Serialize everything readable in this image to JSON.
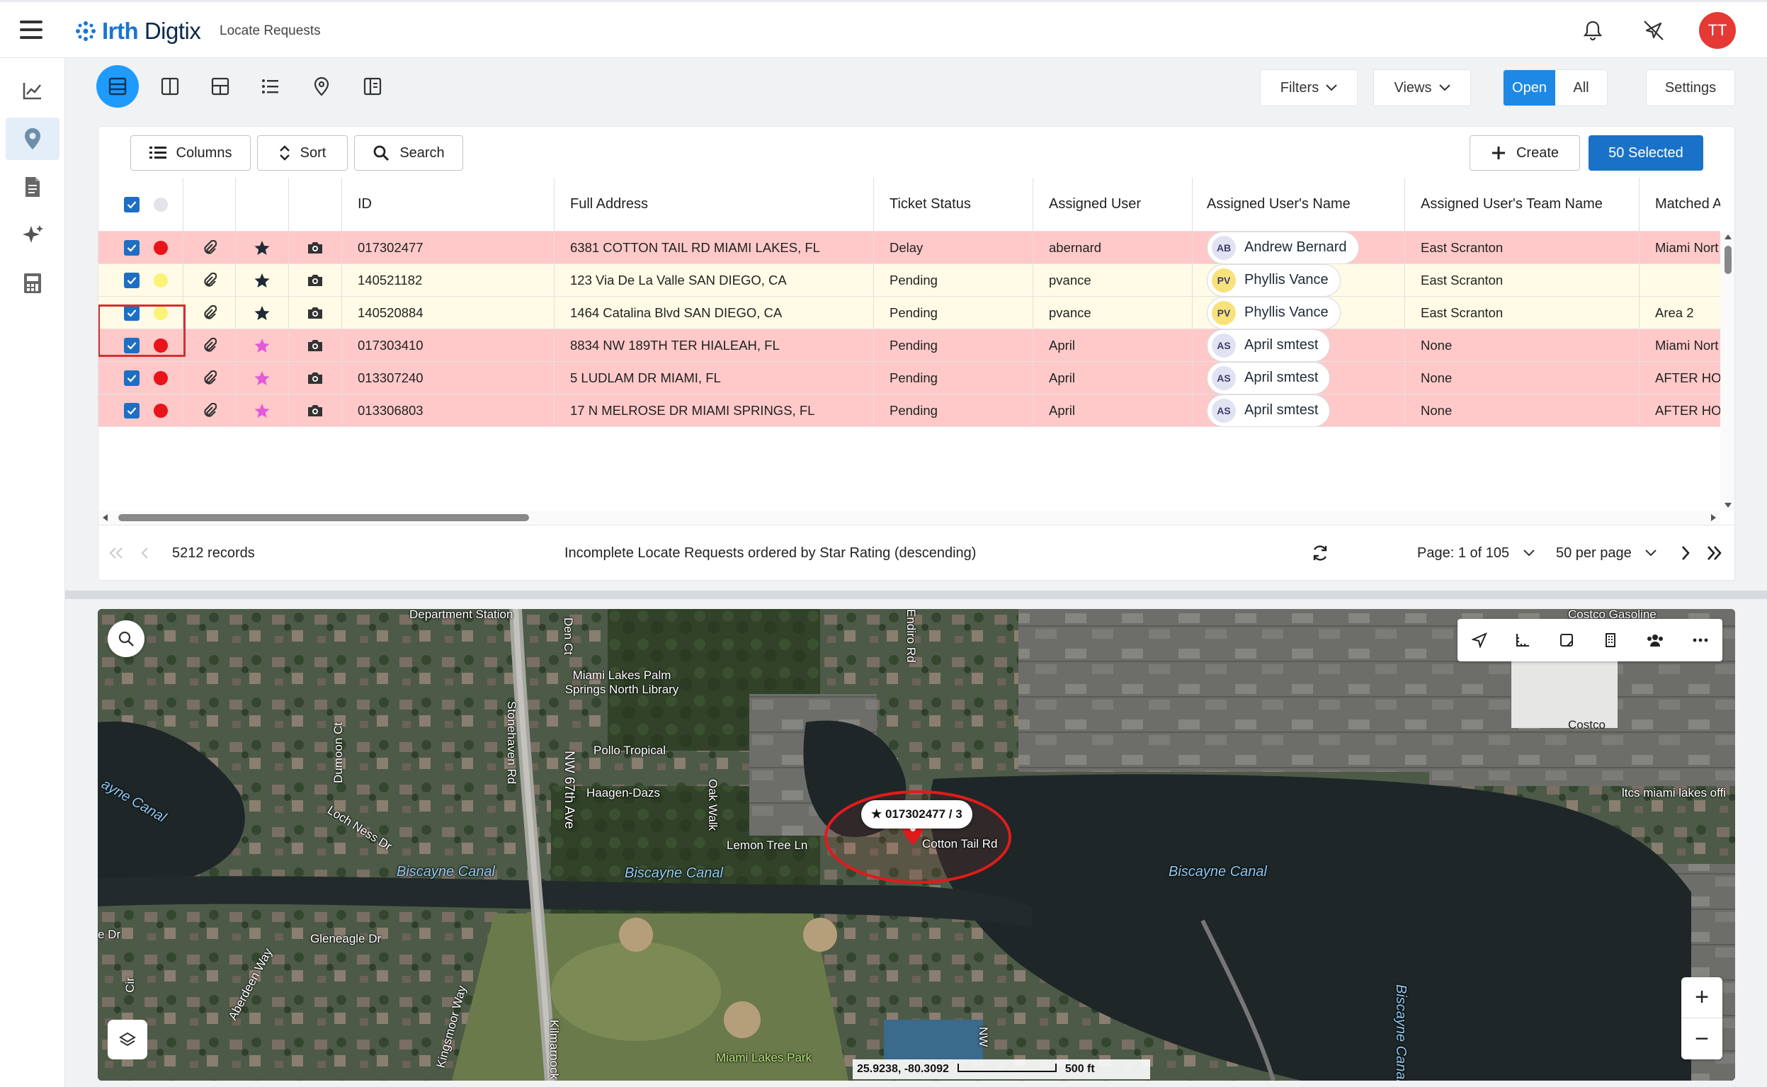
{
  "app": {
    "brand_prefix": "Irth",
    "brand_suffix": " Digtix",
    "page_name": "Locate Requests",
    "user_initials": "TT"
  },
  "toolbar": {
    "filters": "Filters",
    "views": "Views",
    "open": "Open",
    "all": "All",
    "settings": "Settings"
  },
  "panel_tools": {
    "columns": "Columns",
    "sort": "Sort",
    "search": "Search",
    "create": "Create",
    "selected": "50 Selected"
  },
  "columns": [
    "ID",
    "Full Address",
    "Ticket Status",
    "Assigned User",
    "Assigned User's Name",
    "Assigned User's Team Name",
    "Matched A"
  ],
  "rows": [
    {
      "id": "017302477",
      "address": "6381 COTTON TAIL RD MIAMI LAKES, FL",
      "status": "Delay",
      "user": "abernard",
      "initials": "AB",
      "name": "Andrew Bernard",
      "team": "East Scranton",
      "matched": "Miami Nort",
      "bg": "#ffc9c9",
      "dot": "#e8141a",
      "star": "#1f2a37",
      "ini_bg": "#e1e3f3"
    },
    {
      "id": "140521182",
      "address": "123 Via De La Valle SAN DIEGO, CA",
      "status": "Pending",
      "user": "pvance",
      "initials": "PV",
      "name": "Phyllis Vance",
      "team": "East Scranton",
      "matched": "",
      "bg": "#fffbe6",
      "dot": "#fbf27a",
      "star": "#1f2a37",
      "ini_bg": "#f8e27a"
    },
    {
      "id": "140520884",
      "address": "1464 Catalina Blvd SAN DIEGO, CA",
      "status": "Pending",
      "user": "pvance",
      "initials": "PV",
      "name": "Phyllis Vance",
      "team": "East Scranton",
      "matched": "Area 2",
      "bg": "#fffbe6",
      "dot": "#fbf27a",
      "star": "#1f2a37",
      "ini_bg": "#f8e27a"
    },
    {
      "id": "017303410",
      "address": "8834 NW 189TH TER HIALEAH, FL",
      "status": "Pending",
      "user": "April",
      "initials": "AS",
      "name": "April smtest",
      "team": "None",
      "matched": "Miami Nort",
      "bg": "#ffc9c9",
      "dot": "#e8141a",
      "star": "#e35ad8",
      "ini_bg": "#e1e3f3"
    },
    {
      "id": "013307240",
      "address": "5 LUDLAM DR MIAMI, FL",
      "status": "Pending",
      "user": "April",
      "initials": "AS",
      "name": "April smtest",
      "team": "None",
      "matched": "AFTER HO",
      "bg": "#ffc9c9",
      "dot": "#e8141a",
      "star": "#e35ad8",
      "ini_bg": "#e1e3f3"
    },
    {
      "id": "013306803",
      "address": "17 N MELROSE DR MIAMI SPRINGS, FL",
      "status": "Pending",
      "user": "April",
      "initials": "AS",
      "name": "April smtest",
      "team": "None",
      "matched": "AFTER HO",
      "bg": "#ffc9c9",
      "dot": "#e8141a",
      "star": "#e35ad8",
      "ini_bg": "#e1e3f3"
    }
  ],
  "footer": {
    "records": "5212 records",
    "description": "Incomplete Locate Requests ordered by Star Rating (descending)",
    "page": "Page: 1 of 105",
    "per_page": "50 per page"
  },
  "map": {
    "callout": "★ 017302477 / 3",
    "coords": "25.9238, -80.3092",
    "scale": "500 ft",
    "labels": {
      "dept_station": "Department Station",
      "library": "Miami Lakes Palm Springs North Library",
      "pollo": "Pollo Tropical",
      "haagen": "Haagen-Dazs",
      "lemon": "Lemon Tree Ln",
      "cotton": "Cotton Tail Rd",
      "loch": "Loch Ness Dr",
      "dumoon": "Dumoon Ct",
      "stonehaven": "Stonehaven Rd",
      "nw67": "NW 67th Ave",
      "oakwalk": "Oak Walk",
      "endiro": "Endiro Rd",
      "gleneagle": "Gleneagle Dr",
      "aberdeen": "Aberdeen Way",
      "kingsmoor": "Kingsmoor Way",
      "kilmarnock": "Kilmarnock",
      "park": "Miami Lakes Park",
      "costco": "Costco",
      "costco_gas": "Costco Gasoline",
      "ltcs": "ltcs miami lakes offi",
      "canal1": "Biscayne Canal",
      "canal2": "Biscayne Canal",
      "canal3": "Biscayne Canal",
      "canal4": "Biscayne Canal",
      "canal_w": "ayne Canal",
      "nw": "NW",
      "cir": "Cir",
      "edr": "e Dr",
      "den": "Den Ct"
    }
  }
}
